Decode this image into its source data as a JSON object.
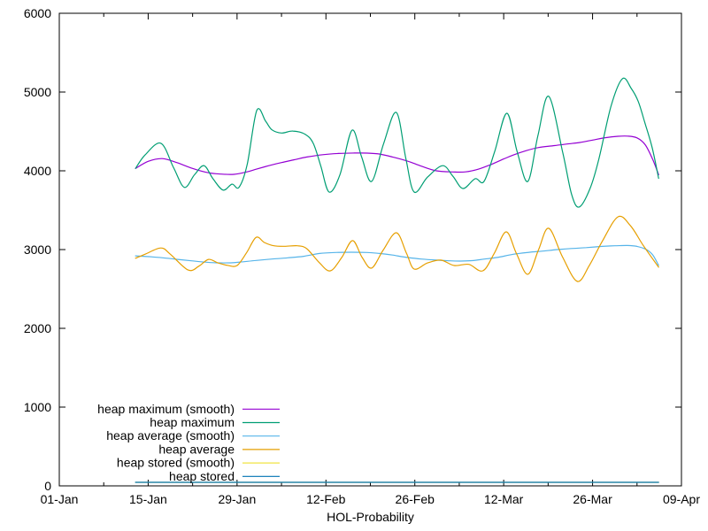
{
  "chart_data": {
    "type": "line",
    "title": "",
    "xlabel": "HOL-Probability",
    "ylabel": "",
    "x_unit": "days since 01-Jan",
    "xlim": [
      0,
      98
    ],
    "ylim": [
      0,
      6000
    ],
    "grid": false,
    "legend_position": "inside-bottom-left",
    "axis_color": "#000000",
    "x_ticks_major": [
      {
        "day": 0,
        "label": "01-Jan"
      },
      {
        "day": 14,
        "label": "15-Jan"
      },
      {
        "day": 28,
        "label": "29-Jan"
      },
      {
        "day": 42,
        "label": "12-Feb"
      },
      {
        "day": 56,
        "label": "26-Feb"
      },
      {
        "day": 70,
        "label": "12-Mar"
      },
      {
        "day": 84,
        "label": "26-Mar"
      },
      {
        "day": 98,
        "label": "09-Apr"
      }
    ],
    "x_ticks_minor_days": [
      7,
      21,
      35,
      49,
      63,
      77,
      91
    ],
    "y_ticks": [
      {
        "value": 0,
        "label": "0"
      },
      {
        "value": 1000,
        "label": "1000"
      },
      {
        "value": 2000,
        "label": "2000"
      },
      {
        "value": 3000,
        "label": "3000"
      },
      {
        "value": 4000,
        "label": "4000"
      },
      {
        "value": 5000,
        "label": "5000"
      },
      {
        "value": 6000,
        "label": "6000"
      }
    ],
    "series": [
      {
        "name": "heap maximum (smooth)",
        "color": "#9400d3",
        "points": [
          [
            12,
            4030
          ],
          [
            14,
            4120
          ],
          [
            16.2,
            4155
          ],
          [
            18.5,
            4105
          ],
          [
            21,
            4030
          ],
          [
            23.5,
            3975
          ],
          [
            25.5,
            3958
          ],
          [
            27.5,
            3955
          ],
          [
            29.5,
            3985
          ],
          [
            31,
            4020
          ],
          [
            33,
            4065
          ],
          [
            35,
            4105
          ],
          [
            37,
            4140
          ],
          [
            39,
            4175
          ],
          [
            41.5,
            4205
          ],
          [
            44,
            4220
          ],
          [
            46.5,
            4226
          ],
          [
            48.5,
            4225
          ],
          [
            50.5,
            4212
          ],
          [
            52.5,
            4175
          ],
          [
            54.8,
            4125
          ],
          [
            57,
            4060
          ],
          [
            59.4,
            4000
          ],
          [
            62,
            3985
          ],
          [
            64,
            3986
          ],
          [
            66,
            4020
          ],
          [
            68,
            4080
          ],
          [
            70,
            4150
          ],
          [
            71.5,
            4200
          ],
          [
            73.5,
            4255
          ],
          [
            75.5,
            4295
          ],
          [
            78,
            4320
          ],
          [
            80,
            4340
          ],
          [
            82,
            4360
          ],
          [
            84,
            4390
          ],
          [
            86,
            4420
          ],
          [
            88,
            4438
          ],
          [
            89.5,
            4440
          ],
          [
            91,
            4418
          ],
          [
            92.3,
            4330
          ],
          [
            93.5,
            4140
          ],
          [
            94.4,
            3950
          ]
        ]
      },
      {
        "name": "heap maximum",
        "color": "#009e73",
        "points": [
          [
            12,
            4030
          ],
          [
            13.5,
            4200
          ],
          [
            16,
            4350
          ],
          [
            18,
            4040
          ],
          [
            19.7,
            3790
          ],
          [
            21.3,
            3950
          ],
          [
            22.8,
            4065
          ],
          [
            24.2,
            3900
          ],
          [
            25.8,
            3755
          ],
          [
            27.2,
            3830
          ],
          [
            28.3,
            3790
          ],
          [
            29.6,
            4080
          ],
          [
            31.1,
            4765
          ],
          [
            32.5,
            4630
          ],
          [
            33.5,
            4520
          ],
          [
            35,
            4480
          ],
          [
            36.8,
            4505
          ],
          [
            38.7,
            4465
          ],
          [
            40,
            4350
          ],
          [
            41.2,
            4060
          ],
          [
            42.5,
            3730
          ],
          [
            44.2,
            3950
          ],
          [
            46.1,
            4515
          ],
          [
            47.6,
            4180
          ],
          [
            49.2,
            3865
          ],
          [
            51.1,
            4350
          ],
          [
            53.1,
            4740
          ],
          [
            54.6,
            4150
          ],
          [
            55.9,
            3730
          ],
          [
            58,
            3920
          ],
          [
            60.4,
            4065
          ],
          [
            62,
            3930
          ],
          [
            63.6,
            3775
          ],
          [
            65.5,
            3900
          ],
          [
            66.9,
            3865
          ],
          [
            68.6,
            4250
          ],
          [
            70.5,
            4730
          ],
          [
            72.1,
            4250
          ],
          [
            73.8,
            3865
          ],
          [
            75.4,
            4450
          ],
          [
            77.1,
            4945
          ],
          [
            79.3,
            4230
          ],
          [
            80.7,
            3700
          ],
          [
            81.9,
            3540
          ],
          [
            83.6,
            3775
          ],
          [
            85,
            4150
          ],
          [
            86.9,
            4820
          ],
          [
            88.7,
            5170
          ],
          [
            90.1,
            5045
          ],
          [
            91.2,
            4880
          ],
          [
            92.2,
            4620
          ],
          [
            93.4,
            4290
          ],
          [
            94.4,
            3905
          ]
        ]
      },
      {
        "name": "heap average (smooth)",
        "color": "#56b4e9",
        "points": [
          [
            12,
            2920
          ],
          [
            14.5,
            2908
          ],
          [
            17,
            2890
          ],
          [
            19,
            2872
          ],
          [
            21,
            2856
          ],
          [
            23,
            2840
          ],
          [
            24.8,
            2832
          ],
          [
            27,
            2832
          ],
          [
            29,
            2845
          ],
          [
            31,
            2862
          ],
          [
            33.5,
            2880
          ],
          [
            36,
            2895
          ],
          [
            38.5,
            2915
          ],
          [
            41,
            2950
          ],
          [
            43.5,
            2963
          ],
          [
            46,
            2966
          ],
          [
            48.5,
            2963
          ],
          [
            50.5,
            2950
          ],
          [
            52.5,
            2930
          ],
          [
            54.8,
            2900
          ],
          [
            57,
            2880
          ],
          [
            59.4,
            2866
          ],
          [
            61.5,
            2857
          ],
          [
            63,
            2854
          ],
          [
            65,
            2860
          ],
          [
            67,
            2880
          ],
          [
            69,
            2900
          ],
          [
            71.5,
            2940
          ],
          [
            74,
            2965
          ],
          [
            76,
            2980
          ],
          [
            78.5,
            3000
          ],
          [
            81,
            3015
          ],
          [
            83,
            3025
          ],
          [
            85.5,
            3040
          ],
          [
            87.5,
            3048
          ],
          [
            89.5,
            3052
          ],
          [
            91,
            3040
          ],
          [
            92.5,
            3000
          ],
          [
            93.5,
            2930
          ],
          [
            94.4,
            2800
          ]
        ]
      },
      {
        "name": "heap average",
        "color": "#e69f00",
        "points": [
          [
            12,
            2890
          ],
          [
            13.5,
            2940
          ],
          [
            16,
            3020
          ],
          [
            17.5,
            2940
          ],
          [
            20.3,
            2740
          ],
          [
            22,
            2790
          ],
          [
            23.5,
            2875
          ],
          [
            25,
            2830
          ],
          [
            26.5,
            2800
          ],
          [
            28,
            2798
          ],
          [
            29.5,
            2960
          ],
          [
            31,
            3155
          ],
          [
            32.3,
            3090
          ],
          [
            33.8,
            3048
          ],
          [
            35.5,
            3042
          ],
          [
            37.5,
            3048
          ],
          [
            39,
            3010
          ],
          [
            41,
            2830
          ],
          [
            42.7,
            2730
          ],
          [
            44.5,
            2900
          ],
          [
            46.2,
            3113
          ],
          [
            47.7,
            2900
          ],
          [
            49.2,
            2765
          ],
          [
            51,
            2990
          ],
          [
            53.1,
            3214
          ],
          [
            54.7,
            2950
          ],
          [
            55.9,
            2753
          ],
          [
            58,
            2830
          ],
          [
            60.1,
            2866
          ],
          [
            62.2,
            2798
          ],
          [
            64.5,
            2812
          ],
          [
            66.7,
            2730
          ],
          [
            68.5,
            2950
          ],
          [
            70.4,
            3225
          ],
          [
            72,
            2950
          ],
          [
            73.8,
            2686
          ],
          [
            75.5,
            3000
          ],
          [
            77.1,
            3270
          ],
          [
            79.3,
            2900
          ],
          [
            81.6,
            2596
          ],
          [
            83.5,
            2800
          ],
          [
            85.5,
            3100
          ],
          [
            88,
            3416
          ],
          [
            90,
            3300
          ],
          [
            92,
            3050
          ],
          [
            94.4,
            2776
          ]
        ]
      },
      {
        "name": "heap stored (smooth)",
        "color": "#f0e442",
        "points": [
          [
            12,
            45
          ],
          [
            30,
            45
          ],
          [
            50,
            45
          ],
          [
            70,
            45
          ],
          [
            94.4,
            45
          ]
        ]
      },
      {
        "name": "heap stored",
        "color": "#0072b2",
        "points": [
          [
            12,
            45
          ],
          [
            30,
            45
          ],
          [
            50,
            45
          ],
          [
            70,
            45
          ],
          [
            94.4,
            45
          ]
        ]
      }
    ]
  }
}
